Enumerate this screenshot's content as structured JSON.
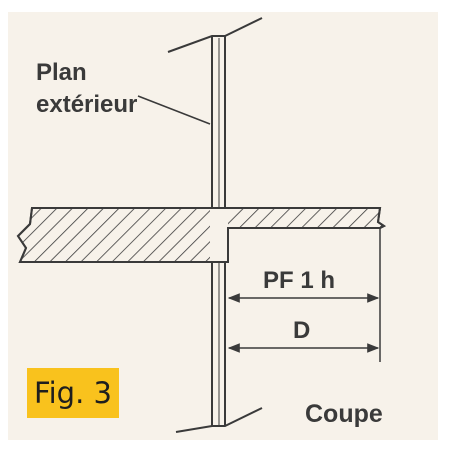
{
  "figure": {
    "label_plan_line1": "Plan",
    "label_plan_line2": "extérieur",
    "dim_pf": "PF 1 h",
    "dim_d": "D",
    "view_label": "Coupe",
    "fig_label": "Fig. 3",
    "colors": {
      "paper": "#f7f2ea",
      "ink": "#3a3a3a",
      "badge": "#f9c21d"
    }
  }
}
